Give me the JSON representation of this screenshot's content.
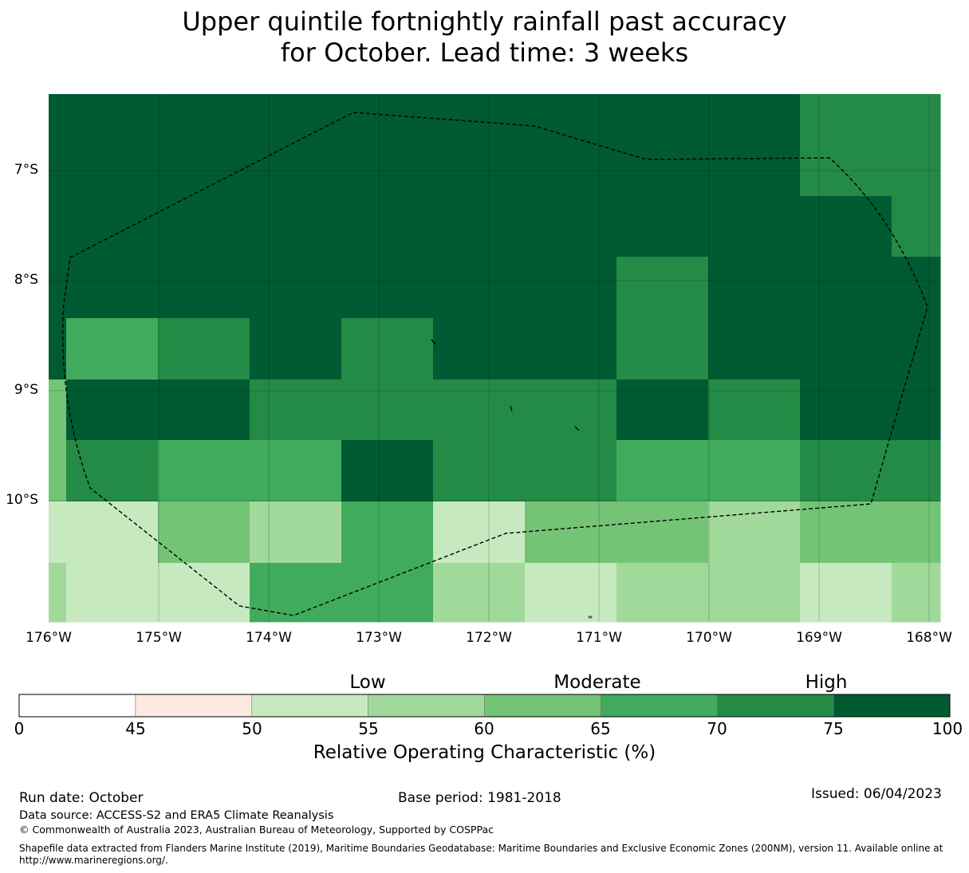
{
  "title": {
    "line1": "Upper quintile fortnightly rainfall past accuracy",
    "line2": "for October. Lead time: 3 weeks"
  },
  "map": {
    "lat_labels": [
      "7°S",
      "8°S",
      "9°S",
      "10°S"
    ],
    "lon_labels": [
      "176°W",
      "175°W",
      "174°W",
      "173°W",
      "172°W",
      "171°W",
      "170°W",
      "169°W",
      "168°W"
    ],
    "lon_range": [
      -176,
      -167.9
    ],
    "lat_range": [
      -11.2,
      -6.3
    ],
    "boundary_style": "dashed black line (EEZ)",
    "grid_values_roc_percent": [
      [
        80,
        80,
        80,
        80,
        80,
        80,
        80,
        80,
        80,
        72,
        72
      ],
      [
        80,
        80,
        80,
        80,
        80,
        80,
        80,
        80,
        80,
        80,
        72
      ],
      [
        80,
        80,
        80,
        80,
        80,
        80,
        80,
        72,
        80,
        80,
        80
      ],
      [
        80,
        67,
        72,
        80,
        72,
        80,
        80,
        72,
        80,
        80,
        80
      ],
      [
        62,
        80,
        80,
        72,
        72,
        72,
        72,
        80,
        72,
        80,
        80
      ],
      [
        62,
        72,
        67,
        67,
        80,
        72,
        72,
        67,
        67,
        72,
        72
      ],
      [
        52,
        52,
        62,
        57,
        67,
        52,
        62,
        62,
        57,
        62,
        62
      ],
      [
        57,
        52,
        52,
        67,
        67,
        57,
        52,
        57,
        57,
        52,
        57
      ]
    ]
  },
  "colorbar": {
    "levels": [
      "Low",
      "Moderate",
      "High"
    ],
    "ticks": [
      "0",
      "45",
      "50",
      "55",
      "60",
      "65",
      "70",
      "75",
      "100"
    ],
    "colors": [
      "#ffffff",
      "#fee9e0",
      "#c7e9c0",
      "#a1d99b",
      "#74c476",
      "#41ab5d",
      "#238b45",
      "#005a32"
    ],
    "label": "Relative Operating Characteristic (%)"
  },
  "footer": {
    "run_date": "Run date: October",
    "base_period": "Base period: 1981-2018",
    "issued": "Issued: 06/04/2023",
    "data_source": "Data source: ACCESS-S2 and ERA5 Climate Reanalysis",
    "copyright": "© Commonwealth of Australia 2023, Australian Bureau of Meteorology, Supported by COSPPac",
    "shapefile_line1": "Shapefile data extracted from Flanders Marine Institute (2019), Maritime Boundaries Geodatabase: Maritime Boundaries and Exclusive Economic Zones (200NM), version 11. Available online at",
    "shapefile_line2": "http://www.marineregions.org/."
  }
}
